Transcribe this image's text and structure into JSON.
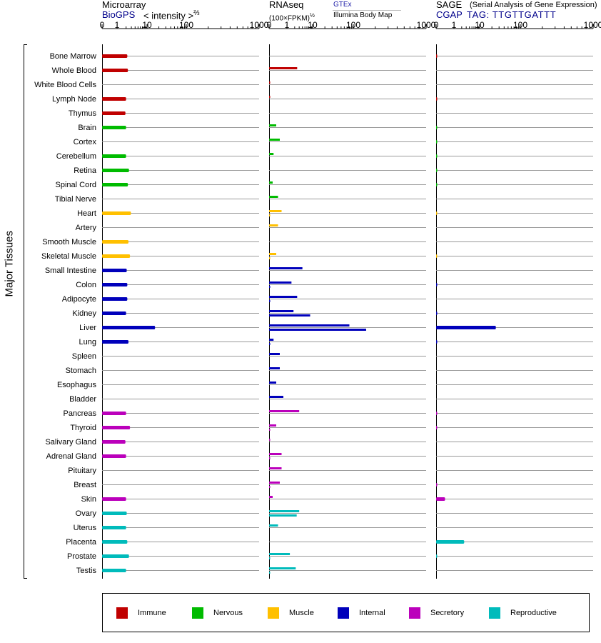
{
  "headers": {
    "microarray": {
      "title": "Microarray",
      "source": "BioGPS",
      "scale": "< intensity >",
      "scale_exp": "⅔"
    },
    "rnaseq": {
      "title": "RNAseq",
      "unit": "(100×FPKM)",
      "unit_exp": "½",
      "source1": "GTEx",
      "source2": "Illumina Body Map"
    },
    "sage": {
      "title": "SAGE",
      "subtitle": "(Serial Analysis of Gene Expression)",
      "tag_label": "CGAP",
      "tag": "TAG: TTGTTGATTT"
    }
  },
  "y_axis_title": "Major Tissues",
  "legend": [
    {
      "label": "Immune",
      "color": "#c00000"
    },
    {
      "label": "Nervous",
      "color": "#00bb00"
    },
    {
      "label": "Muscle",
      "color": "#ffc000"
    },
    {
      "label": "Internal",
      "color": "#0000bb"
    },
    {
      "label": "Secretory",
      "color": "#bb00bb"
    },
    {
      "label": "Reproductive",
      "color": "#00bbbb"
    }
  ],
  "chart_data": {
    "type": "bar",
    "scale": "power-transformed (0, 1, 10, 100, 1000)",
    "x_ticks": [
      "0",
      "1",
      "10",
      "100",
      "1000"
    ],
    "x_tick_values": [
      0,
      1,
      10,
      100,
      1000
    ],
    "categories": [
      "Bone Marrow",
      "Whole Blood",
      "White Blood Cells",
      "Lymph Node",
      "Thymus",
      "Brain",
      "Cortex",
      "Cerebellum",
      "Retina",
      "Spinal Cord",
      "Tibial Nerve",
      "Heart",
      "Artery",
      "Smooth Muscle",
      "Skeletal Muscle",
      "Small Intestine",
      "Colon",
      "Adipocyte",
      "Kidney",
      "Liver",
      "Lung",
      "Spleen",
      "Stomach",
      "Esophagus",
      "Bladder",
      "Pancreas",
      "Thyroid",
      "Salivary Gland",
      "Adrenal Gland",
      "Pituitary",
      "Breast",
      "Skin",
      "Ovary",
      "Uterus",
      "Placenta",
      "Prostate",
      "Testis"
    ],
    "groups": [
      0,
      0,
      0,
      0,
      0,
      1,
      1,
      1,
      1,
      1,
      1,
      2,
      2,
      2,
      2,
      3,
      3,
      3,
      3,
      3,
      3,
      3,
      3,
      3,
      3,
      4,
      4,
      4,
      4,
      4,
      4,
      4,
      5,
      5,
      5,
      5,
      5
    ],
    "microarray": [
      2.2,
      2.3,
      null,
      2.0,
      1.9,
      2.0,
      null,
      2.0,
      2.5,
      2.3,
      null,
      2.9,
      null,
      2.4,
      2.7,
      2.1,
      2.2,
      2.2,
      2.0,
      16,
      2.4,
      null,
      null,
      null,
      null,
      2.0,
      2.7,
      1.9,
      2.0,
      null,
      null,
      2.0,
      2.1,
      2.0,
      2.2,
      2.5,
      2.0
    ],
    "rnaseq_gtex": [
      null,
      2.5,
      0.02,
      0.02,
      null,
      0.4,
      0.6,
      0.25,
      null,
      0.2,
      0.5,
      0.7,
      0.5,
      null,
      0.4,
      4.0,
      1.5,
      2.5,
      1.8,
      80,
      0.25,
      0.6,
      0.6,
      0.4,
      0.8,
      3.0,
      0.4,
      0.02,
      0.7,
      0.7,
      0.6,
      0.2,
      3.0,
      0.5,
      null,
      1.3,
      2.2
    ],
    "rnaseq_ibm": [
      null,
      null,
      null,
      null,
      null,
      null,
      null,
      null,
      null,
      null,
      null,
      0.02,
      null,
      null,
      0.02,
      null,
      0.02,
      0.02,
      8.0,
      150,
      0.02,
      null,
      null,
      null,
      null,
      null,
      0.02,
      null,
      0.02,
      null,
      0.02,
      null,
      2.4,
      null,
      null,
      0.02,
      0.02
    ],
    "sage": [
      0.02,
      null,
      null,
      0.02,
      null,
      0.02,
      0.02,
      0.02,
      0.02,
      0.02,
      null,
      0.01,
      null,
      null,
      0.01,
      null,
      0.02,
      null,
      0.02,
      25,
      0.02,
      null,
      null,
      null,
      null,
      0.02,
      0.02,
      null,
      null,
      null,
      0.02,
      0.5,
      null,
      null,
      2.5,
      0.02,
      null
    ]
  }
}
